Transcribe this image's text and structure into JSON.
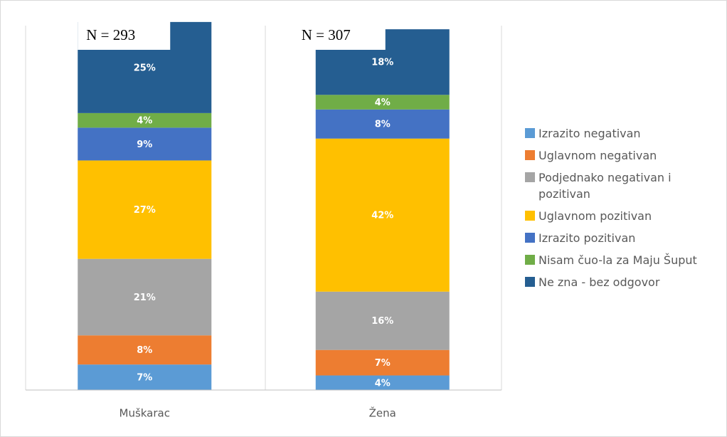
{
  "chart_data": {
    "type": "stacked_bar",
    "categories": [
      "Muškarac",
      "Žena"
    ],
    "annotations": [
      "N = 293",
      "N = 307"
    ],
    "ylim": [
      0,
      100
    ],
    "series": [
      {
        "name": "Izrazito negativan",
        "color": "#5b9bd5",
        "values": [
          7,
          4
        ],
        "value_labels": [
          "7%",
          "4%"
        ]
      },
      {
        "name": "Uglavnom negativan",
        "color": "#ed7d31",
        "values": [
          8,
          7
        ],
        "value_labels": [
          "8%",
          "7%"
        ]
      },
      {
        "name": "Podjednako negativan i pozitivan",
        "color": "#a5a5a5",
        "values": [
          21,
          16
        ],
        "value_labels": [
          "21%",
          "16%"
        ]
      },
      {
        "name": "Uglavnom pozitivan",
        "color": "#ffc000",
        "values": [
          27,
          42
        ],
        "value_labels": [
          "27%",
          "42%"
        ]
      },
      {
        "name": "Izrazito pozitivan",
        "color": "#4472c4",
        "values": [
          9,
          8
        ],
        "value_labels": [
          "9%",
          "8%"
        ]
      },
      {
        "name": "Nisam čuo-la za Maju Šuput",
        "color": "#70ad47",
        "values": [
          4,
          4
        ],
        "value_labels": [
          "4%",
          "4%"
        ]
      },
      {
        "name": "Ne zna - bez odgovor",
        "color": "#255e91",
        "values": [
          25,
          18
        ],
        "value_labels": [
          "25%",
          "18%"
        ]
      }
    ]
  }
}
